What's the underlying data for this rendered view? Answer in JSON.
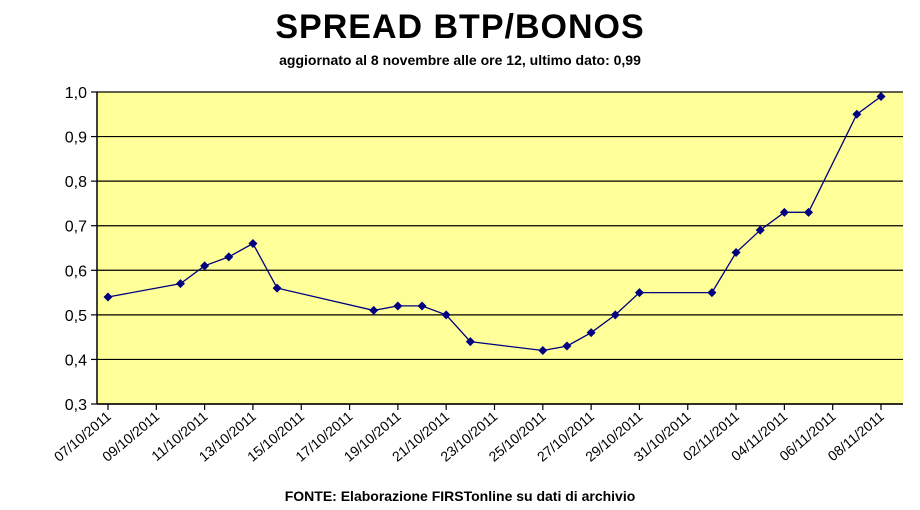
{
  "chart_data": {
    "type": "line",
    "title": "SPREAD BTP/BONOS",
    "subtitle": "aggiornato al 8 novembre alle ore 12, ultimo dato: 0,99",
    "footer": "FONTE: Elaborazione FIRSTonline su dati di archivio",
    "xlabel": "",
    "ylabel": "",
    "ylim": [
      0.3,
      1.0
    ],
    "yticks": [
      "0,3",
      "0,4",
      "0,5",
      "0,6",
      "0,7",
      "0,8",
      "0,9",
      "1,0"
    ],
    "xticks": [
      "07/10/2011",
      "09/10/2011",
      "11/10/2011",
      "13/10/2011",
      "15/10/2011",
      "17/10/2011",
      "19/10/2011",
      "21/10/2011",
      "23/10/2011",
      "25/10/2011",
      "27/10/2011",
      "29/10/2011",
      "31/10/2011",
      "02/11/2011",
      "04/11/2011",
      "06/11/2011",
      "08/11/2011"
    ],
    "grid": true,
    "colors": {
      "plot_bg": "#ffff99",
      "line": "#000080",
      "marker": "#000080",
      "grid": "#000000"
    },
    "series": [
      {
        "x": [
          "07/10/2011",
          "10/10/2011",
          "11/10/2011",
          "12/10/2011",
          "13/10/2011",
          "14/10/2011",
          "18/10/2011",
          "19/10/2011",
          "20/10/2011",
          "21/10/2011",
          "22/10/2011",
          "25/10/2011",
          "26/10/2011",
          "27/10/2011",
          "28/10/2011",
          "29/10/2011",
          "01/11/2011",
          "02/11/2011",
          "03/11/2011",
          "04/11/2011",
          "05/11/2011",
          "07/11/2011",
          "08/11/2011"
        ],
        "values": [
          0.54,
          0.57,
          0.61,
          0.63,
          0.66,
          0.56,
          0.51,
          0.52,
          0.52,
          0.5,
          0.44,
          0.42,
          0.43,
          0.46,
          0.5,
          0.55,
          0.55,
          0.64,
          0.69,
          0.73,
          0.73,
          0.95,
          0.99
        ]
      }
    ]
  }
}
